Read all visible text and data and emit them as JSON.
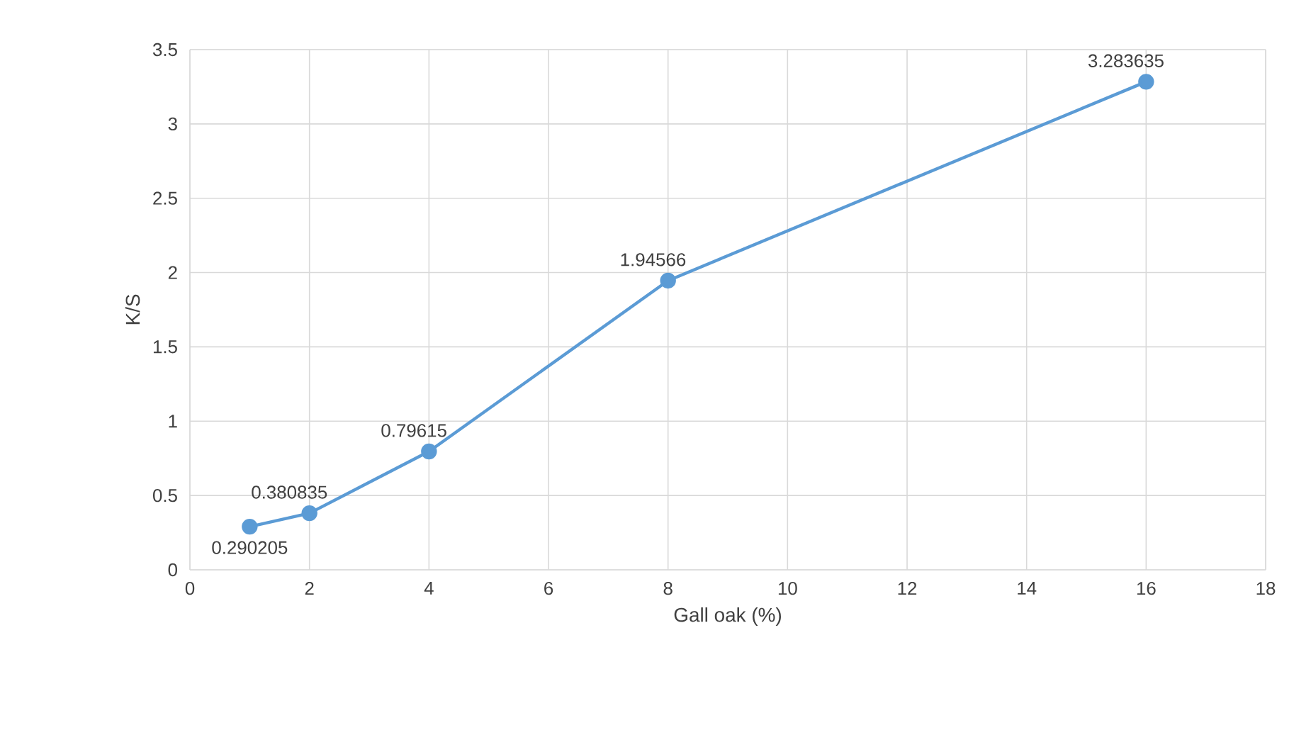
{
  "chart_data": {
    "type": "line",
    "xlabel": "Gall oak (%)",
    "ylabel": "K/S",
    "x": [
      1,
      2,
      4,
      8,
      16
    ],
    "series": [
      {
        "color": "#5b9bd5",
        "values": [
          0.290205,
          0.380835,
          0.79615,
          1.94566,
          3.283635
        ]
      }
    ],
    "xlim": [
      0,
      18
    ],
    "xticks": [
      0,
      2,
      4,
      6,
      8,
      10,
      12,
      14,
      16,
      18
    ],
    "ylim": [
      0,
      3.5
    ],
    "yticks": [
      0,
      0.5,
      1,
      1.5,
      2,
      2.5,
      3,
      3.5
    ],
    "grid": true,
    "marker": "circle",
    "line_style": "solid",
    "data_labels": true,
    "legend": false
  }
}
